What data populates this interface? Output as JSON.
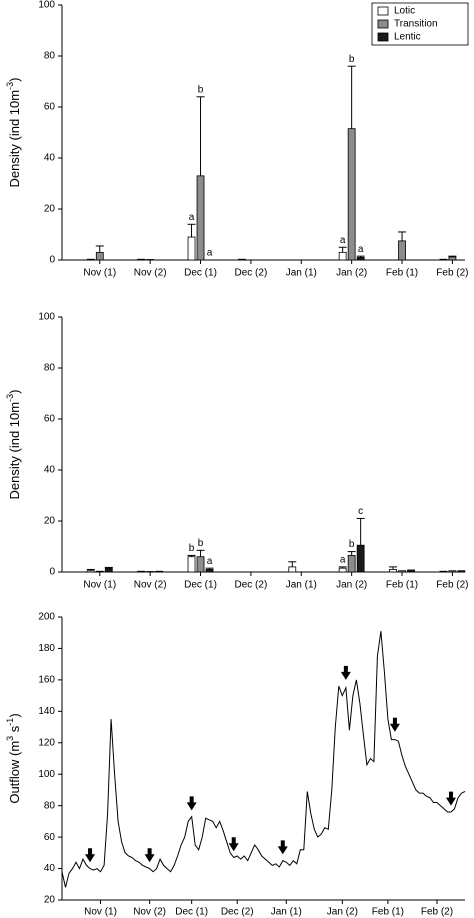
{
  "chart_data": [
    {
      "type": "bar",
      "ylabel": [
        {
          "text": "Density (ind 10m"
        },
        {
          "text": "-3",
          "sup": true
        },
        {
          "text": ")"
        }
      ],
      "categories": [
        "Nov (1)",
        "Nov (2)",
        "Dec (1)",
        "Dec (2)",
        "Jan (1)",
        "Jan (2)",
        "Feb (1)",
        "Feb (2)"
      ],
      "series": [
        {
          "name": "Lotic",
          "color": "#ffffff",
          "values": [
            0.3,
            0.3,
            9,
            0.3,
            0,
            3,
            0,
            0.3
          ],
          "errors": [
            null,
            null,
            5,
            null,
            null,
            2,
            null,
            null
          ],
          "letters": [
            null,
            null,
            "a",
            null,
            null,
            "a",
            null,
            null
          ]
        },
        {
          "name": "Transition",
          "color": "#8c8c8c",
          "values": [
            3,
            0.2,
            33,
            0,
            0,
            51.5,
            7.5,
            1.2
          ],
          "errors": [
            2.5,
            null,
            31,
            null,
            null,
            24.5,
            3.5,
            0.3
          ],
          "letters": [
            null,
            null,
            "b",
            null,
            null,
            "b",
            null,
            null
          ]
        },
        {
          "name": "Lentic",
          "color": "#1a1a1a",
          "values": [
            0,
            0,
            0,
            0,
            0,
            1,
            0,
            0
          ],
          "errors": [
            null,
            null,
            null,
            null,
            null,
            0.5,
            null,
            null
          ],
          "letters": [
            null,
            null,
            "a",
            null,
            null,
            "a",
            null,
            null
          ]
        }
      ],
      "ylim": [
        0,
        100
      ],
      "yticks": [
        0,
        20,
        40,
        60,
        80,
        100
      ],
      "legend": "upper right"
    },
    {
      "type": "bar",
      "ylabel": [
        {
          "text": "Density (ind 10m"
        },
        {
          "text": "-3",
          "sup": true
        },
        {
          "text": ")"
        }
      ],
      "categories": [
        "Nov (1)",
        "Nov (2)",
        "Dec (1)",
        "Dec (2)",
        "Jan (1)",
        "Jan (2)",
        "Feb (1)",
        "Feb (2)"
      ],
      "series": [
        {
          "color": "#ffffff",
          "values": [
            0.5,
            0.3,
            6,
            0,
            2,
            1.5,
            1,
            0.3
          ],
          "errors": [
            0.5,
            null,
            0.5,
            null,
            2,
            0.5,
            1,
            null
          ],
          "letters": [
            null,
            null,
            "b",
            null,
            null,
            "a",
            null,
            null
          ]
        },
        {
          "color": "#8c8c8c",
          "values": [
            0.3,
            0.2,
            6,
            0,
            0,
            6.5,
            0.5,
            0.5
          ],
          "errors": [
            null,
            null,
            2.5,
            null,
            null,
            1.5,
            null,
            null
          ],
          "letters": [
            null,
            null,
            "b",
            null,
            null,
            "b",
            null,
            null
          ]
        },
        {
          "color": "#1a1a1a",
          "values": [
            1.5,
            0.3,
            1,
            0,
            0,
            10.5,
            0.8,
            0.5
          ],
          "errors": [
            0.3,
            null,
            0.5,
            null,
            null,
            10.5,
            null,
            null
          ],
          "letters": [
            null,
            null,
            "a",
            null,
            null,
            "c",
            null,
            null
          ]
        }
      ],
      "ylim": [
        0,
        100
      ],
      "yticks": [
        0,
        20,
        40,
        60,
        80,
        100
      ]
    },
    {
      "type": "line",
      "ylabel": [
        {
          "text": "Outflow (m"
        },
        {
          "text": "3",
          "sup": true
        },
        {
          "text": " s"
        },
        {
          "text": "-1",
          "sup": true
        },
        {
          "text": ")"
        }
      ],
      "color": "#000000",
      "x": [
        0,
        1,
        2,
        3,
        4,
        5,
        6,
        7,
        8,
        9,
        10,
        11,
        12,
        13,
        14,
        15,
        16,
        17,
        18,
        19,
        20,
        21,
        22,
        23,
        24,
        25,
        26,
        27,
        28,
        29,
        30,
        31,
        32,
        33,
        34,
        35,
        36,
        37,
        38,
        39,
        40,
        41,
        42,
        43,
        44,
        45,
        46,
        47,
        48,
        49,
        50,
        51,
        52,
        53,
        54,
        55,
        56,
        57,
        58,
        59,
        60,
        61,
        62,
        63,
        64,
        65,
        66,
        67,
        68,
        69,
        70,
        71,
        72,
        73,
        74,
        75,
        76,
        77,
        78,
        79,
        80,
        81,
        82,
        83,
        84,
        85,
        86,
        87,
        88,
        89,
        90,
        91,
        92,
        93,
        94,
        95,
        96,
        97,
        98,
        99,
        100,
        101,
        102,
        103,
        104,
        105,
        106,
        107,
        108,
        109,
        110,
        111,
        112,
        113,
        114,
        115
      ],
      "values": [
        38,
        28,
        37,
        40,
        44,
        40,
        46,
        42,
        40,
        39,
        40,
        38,
        42,
        75,
        135,
        100,
        70,
        57,
        50,
        48,
        47,
        45,
        44,
        42,
        41,
        40,
        38,
        40,
        46,
        42,
        40,
        38,
        42,
        48,
        55,
        60,
        70,
        73,
        55,
        52,
        60,
        72,
        71,
        70,
        66,
        70,
        64,
        57,
        50,
        47,
        48,
        46,
        48,
        45,
        50,
        55,
        52,
        48,
        46,
        44,
        42,
        43,
        41,
        45,
        44,
        42,
        45,
        43,
        52,
        52,
        89,
        75,
        65,
        60,
        62,
        66,
        65,
        90,
        130,
        156,
        150,
        155,
        128,
        150,
        160,
        145,
        125,
        106,
        110,
        108,
        175,
        191,
        165,
        135,
        122,
        122,
        121,
        112,
        105,
        100,
        95,
        90,
        88,
        88,
        86,
        85,
        82,
        82,
        80,
        78,
        76,
        76,
        78,
        85,
        88,
        89
      ],
      "arrows": {
        "x": [
          8,
          25,
          37,
          49,
          63,
          81,
          95,
          111
        ],
        "y": [
          44,
          44,
          77,
          51,
          49,
          160,
          127,
          80
        ]
      },
      "xlim": [
        0,
        115
      ],
      "xticks": [
        {
          "value": 11,
          "label": "Nov (1)"
        },
        {
          "value": 25,
          "label": "Nov (2)"
        },
        {
          "value": 37,
          "label": "Dec (1)"
        },
        {
          "value": 50,
          "label": "Dec (2)"
        },
        {
          "value": 64,
          "label": "Jan (1)"
        },
        {
          "value": 80,
          "label": "Jan (2)"
        },
        {
          "value": 93,
          "label": "Feb (1)"
        },
        {
          "value": 107,
          "label": "Feb (2)"
        }
      ],
      "ylim": [
        20,
        200
      ],
      "yticks": [
        20,
        40,
        60,
        80,
        100,
        120,
        140,
        160,
        180,
        200
      ]
    }
  ]
}
